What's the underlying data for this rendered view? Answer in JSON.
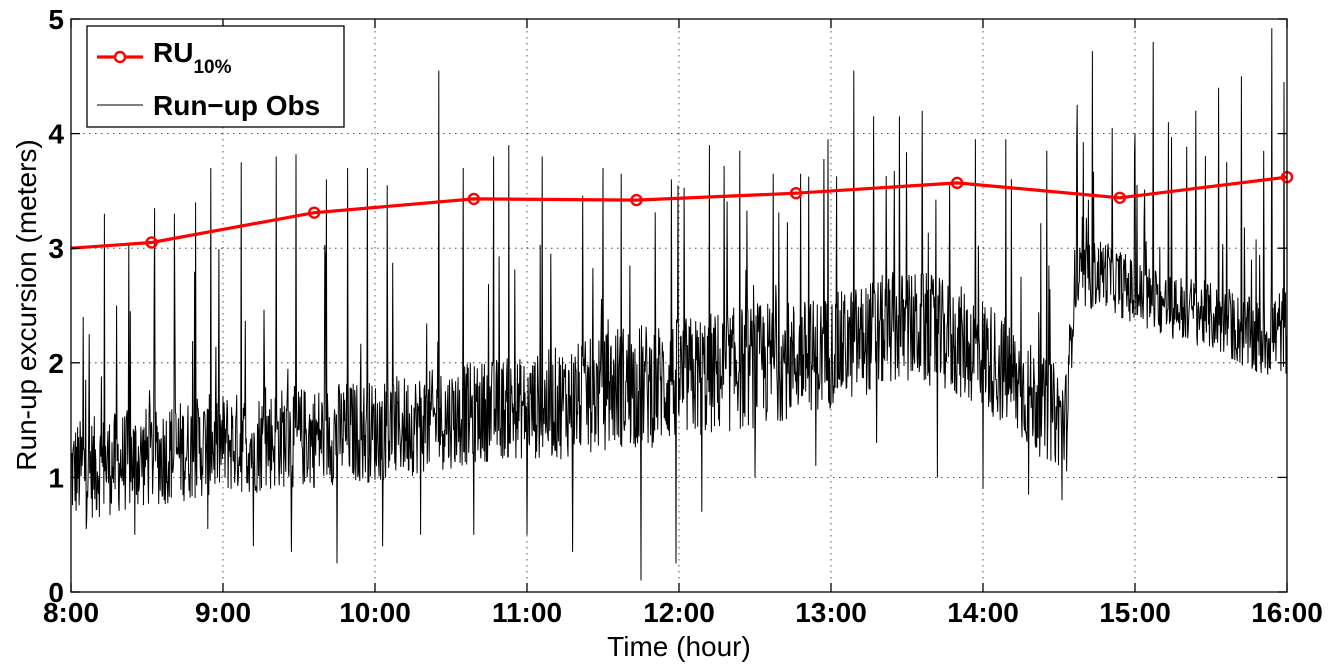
{
  "chart_data": {
    "type": "line",
    "title": "",
    "xlabel": "Time (hour)",
    "ylabel": "Run-up excursion (meters)",
    "x_unit": "hour of day",
    "xlim": [
      8,
      16
    ],
    "ylim": [
      0,
      5
    ],
    "xticks": [
      8,
      9,
      10,
      11,
      12,
      13,
      14,
      15,
      16
    ],
    "xtick_labels": [
      "8:00",
      "9:00",
      "10:00",
      "11:00",
      "12:00",
      "13:00",
      "14:00",
      "15:00",
      "16:00"
    ],
    "yticks": [
      0,
      1,
      2,
      3,
      4,
      5
    ],
    "ytick_labels": [
      "0",
      "1",
      "2",
      "3",
      "4",
      "5"
    ],
    "grid": true,
    "legend_position": "top-left",
    "series": [
      {
        "name": "RU10%",
        "legend_main": "RU",
        "legend_sub": "10%",
        "color": "#ff0000",
        "marker": "circle",
        "x": [
          8.0,
          8.53,
          9.6,
          10.65,
          11.72,
          12.77,
          13.83,
          14.9,
          16.0
        ],
        "y": [
          3.0,
          3.05,
          3.31,
          3.43,
          3.42,
          3.48,
          3.57,
          3.44,
          3.62
        ]
      },
      {
        "name": "Run-up Obs",
        "legend_label": "Run−up Obs",
        "color": "#000000",
        "note_style": "high-frequency observation trace",
        "x": [
          8.0,
          8.2,
          8.4,
          8.6,
          8.8,
          9.0,
          9.2,
          9.4,
          9.6,
          9.8,
          10.0,
          10.2,
          10.4,
          10.6,
          10.8,
          11.0,
          11.2,
          11.4,
          11.6,
          11.8,
          12.0,
          12.2,
          12.4,
          12.6,
          12.8,
          13.0,
          13.2,
          13.4,
          13.6,
          13.8,
          14.0,
          14.2,
          14.4,
          14.55,
          14.6,
          14.8,
          15.0,
          15.2,
          15.4,
          15.6,
          15.8,
          16.0
        ],
        "y": [
          1.05,
          1.1,
          1.15,
          1.2,
          1.25,
          1.3,
          1.3,
          1.35,
          1.35,
          1.4,
          1.4,
          1.45,
          1.5,
          1.55,
          1.6,
          1.6,
          1.65,
          1.7,
          1.8,
          1.8,
          1.85,
          1.9,
          1.95,
          2.0,
          2.05,
          2.1,
          2.2,
          2.3,
          2.3,
          2.2,
          2.1,
          1.85,
          1.6,
          1.5,
          2.7,
          2.8,
          2.6,
          2.5,
          2.45,
          2.35,
          2.2,
          2.3
        ],
        "spread": [
          0.45,
          0.45,
          0.45,
          0.45,
          0.45,
          0.45,
          0.45,
          0.45,
          0.45,
          0.45,
          0.45,
          0.45,
          0.45,
          0.45,
          0.45,
          0.45,
          0.5,
          0.5,
          0.55,
          0.55,
          0.55,
          0.55,
          0.55,
          0.55,
          0.5,
          0.5,
          0.5,
          0.5,
          0.5,
          0.5,
          0.5,
          0.5,
          0.45,
          0.45,
          0.3,
          0.3,
          0.3,
          0.3,
          0.3,
          0.3,
          0.35,
          0.4
        ],
        "peaks": [
          {
            "x": 8.08,
            "y": 2.4
          },
          {
            "x": 8.22,
            "y": 3.3
          },
          {
            "x": 8.3,
            "y": 2.5
          },
          {
            "x": 8.38,
            "y": 3.05
          },
          {
            "x": 8.55,
            "y": 3.35
          },
          {
            "x": 8.68,
            "y": 3.3
          },
          {
            "x": 8.82,
            "y": 3.4
          },
          {
            "x": 8.92,
            "y": 3.7
          },
          {
            "x": 9.12,
            "y": 3.75
          },
          {
            "x": 9.35,
            "y": 3.8
          },
          {
            "x": 9.48,
            "y": 3.82
          },
          {
            "x": 9.68,
            "y": 3.6
          },
          {
            "x": 9.82,
            "y": 3.7
          },
          {
            "x": 9.95,
            "y": 3.7
          },
          {
            "x": 10.08,
            "y": 3.55
          },
          {
            "x": 10.3,
            "y": 3.8
          },
          {
            "x": 10.42,
            "y": 4.55
          },
          {
            "x": 10.58,
            "y": 3.7
          },
          {
            "x": 10.78,
            "y": 3.8
          },
          {
            "x": 10.88,
            "y": 3.9
          },
          {
            "x": 11.1,
            "y": 3.8
          },
          {
            "x": 11.3,
            "y": 3.85
          },
          {
            "x": 11.5,
            "y": 3.7
          },
          {
            "x": 11.62,
            "y": 3.65
          },
          {
            "x": 11.75,
            "y": 4.15
          },
          {
            "x": 11.95,
            "y": 3.6
          },
          {
            "x": 12.2,
            "y": 3.9
          },
          {
            "x": 12.4,
            "y": 3.85
          },
          {
            "x": 12.62,
            "y": 3.65
          },
          {
            "x": 12.8,
            "y": 3.65
          },
          {
            "x": 12.98,
            "y": 3.95
          },
          {
            "x": 13.15,
            "y": 4.55
          },
          {
            "x": 13.28,
            "y": 4.15
          },
          {
            "x": 13.45,
            "y": 4.15
          },
          {
            "x": 13.6,
            "y": 4.2
          },
          {
            "x": 13.78,
            "y": 3.55
          },
          {
            "x": 13.95,
            "y": 3.95
          },
          {
            "x": 14.15,
            "y": 3.95
          },
          {
            "x": 14.3,
            "y": 3.75
          },
          {
            "x": 14.42,
            "y": 3.85
          },
          {
            "x": 14.62,
            "y": 4.25
          },
          {
            "x": 14.72,
            "y": 4.72
          },
          {
            "x": 14.85,
            "y": 4.05
          },
          {
            "x": 15.0,
            "y": 4.0
          },
          {
            "x": 15.12,
            "y": 4.8
          },
          {
            "x": 15.22,
            "y": 4.1
          },
          {
            "x": 15.4,
            "y": 4.2
          },
          {
            "x": 15.55,
            "y": 4.4
          },
          {
            "x": 15.7,
            "y": 4.5
          },
          {
            "x": 15.9,
            "y": 4.92
          },
          {
            "x": 15.98,
            "y": 4.45
          }
        ],
        "troughs": [
          {
            "x": 8.1,
            "y": 0.55
          },
          {
            "x": 8.42,
            "y": 0.5
          },
          {
            "x": 8.9,
            "y": 0.55
          },
          {
            "x": 9.2,
            "y": 0.4
          },
          {
            "x": 9.45,
            "y": 0.35
          },
          {
            "x": 9.75,
            "y": 0.25
          },
          {
            "x": 10.05,
            "y": 0.4
          },
          {
            "x": 10.3,
            "y": 0.5
          },
          {
            "x": 10.65,
            "y": 0.5
          },
          {
            "x": 11.0,
            "y": 0.5
          },
          {
            "x": 11.3,
            "y": 0.35
          },
          {
            "x": 11.75,
            "y": 0.1
          },
          {
            "x": 11.98,
            "y": 0.25
          },
          {
            "x": 12.15,
            "y": 0.7
          },
          {
            "x": 12.5,
            "y": 1.0
          },
          {
            "x": 12.9,
            "y": 1.1
          },
          {
            "x": 13.3,
            "y": 1.3
          },
          {
            "x": 13.7,
            "y": 1.0
          },
          {
            "x": 14.0,
            "y": 0.9
          },
          {
            "x": 14.3,
            "y": 0.85
          },
          {
            "x": 14.52,
            "y": 0.8
          }
        ]
      }
    ]
  }
}
